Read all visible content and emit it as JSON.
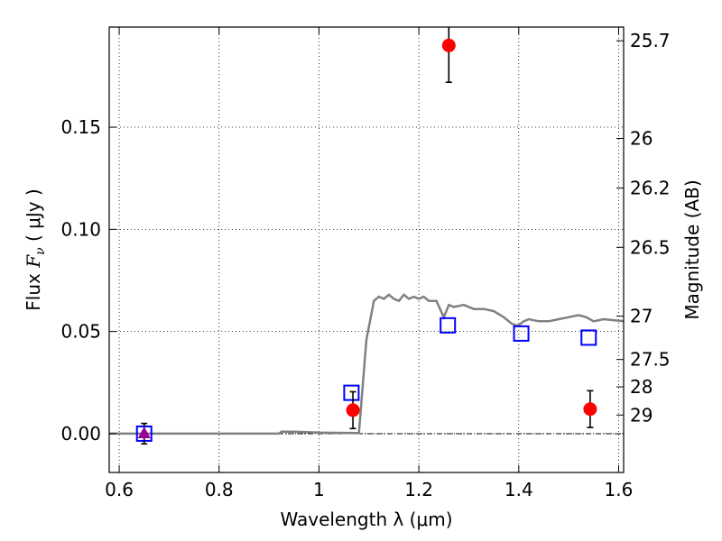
{
  "chart_data": {
    "type": "scatter",
    "xlabel": "Wavelength  λ (μm)",
    "ylabel": "Flux  F_ν  ( μJy )",
    "ylabel_parts": {
      "pre": "Flux  ",
      "sym": "F",
      "sub": "ν",
      "post": "  ( μJy )"
    },
    "y2label": "Magnitude (AB)",
    "xlim": [
      0.58,
      1.61
    ],
    "ylim": [
      -0.019,
      0.199
    ],
    "grid": true,
    "x_ticks": [
      {
        "value": 0.6,
        "label": "0.6"
      },
      {
        "value": 0.8,
        "label": "0.8"
      },
      {
        "value": 1.0,
        "label": "1"
      },
      {
        "value": 1.2,
        "label": "1.2"
      },
      {
        "value": 1.4,
        "label": "1.4"
      },
      {
        "value": 1.6,
        "label": "1.6"
      }
    ],
    "y_ticks": [
      {
        "value": 0.0,
        "label": "0.00"
      },
      {
        "value": 0.05,
        "label": "0.05"
      },
      {
        "value": 0.1,
        "label": "0.10"
      },
      {
        "value": 0.15,
        "label": "0.15"
      }
    ],
    "y2_ticks": [
      {
        "flux": 0.1923,
        "label": "25.7"
      },
      {
        "flux": 0.1445,
        "label": "26"
      },
      {
        "flux": 0.1202,
        "label": "26.2"
      },
      {
        "flux": 0.0912,
        "label": "26.5"
      },
      {
        "flux": 0.0575,
        "label": "27"
      },
      {
        "flux": 0.0363,
        "label": "27.5"
      },
      {
        "flux": 0.0229,
        "label": "28"
      },
      {
        "flux": 0.0091,
        "label": "29"
      }
    ],
    "zero_line": 0.0,
    "sed_model": {
      "color": "#808080",
      "x": [
        0.58,
        0.7,
        0.8,
        0.92,
        0.925,
        0.935,
        0.95,
        1.0,
        1.08,
        1.095,
        1.11,
        1.12,
        1.13,
        1.14,
        1.15,
        1.16,
        1.17,
        1.18,
        1.19,
        1.2,
        1.21,
        1.22,
        1.235,
        1.25,
        1.26,
        1.27,
        1.29,
        1.31,
        1.33,
        1.35,
        1.37,
        1.385,
        1.395,
        1.4,
        1.41,
        1.42,
        1.44,
        1.46,
        1.48,
        1.5,
        1.52,
        1.535,
        1.55,
        1.57,
        1.61
      ],
      "y": [
        0.0,
        0.0,
        0.0,
        0.0,
        0.001,
        0.001,
        0.001,
        0.0005,
        0.0003,
        0.046,
        0.065,
        0.067,
        0.066,
        0.068,
        0.066,
        0.065,
        0.068,
        0.066,
        0.067,
        0.066,
        0.067,
        0.065,
        0.065,
        0.057,
        0.063,
        0.062,
        0.063,
        0.061,
        0.061,
        0.06,
        0.057,
        0.054,
        0.053,
        0.053,
        0.055,
        0.056,
        0.055,
        0.055,
        0.056,
        0.057,
        0.058,
        0.057,
        0.055,
        0.056,
        0.055
      ]
    },
    "series": [
      {
        "marker": "circle",
        "color": "#ff0000",
        "points": [
          {
            "x": 1.068,
            "y": 0.0115,
            "err": 0.009
          },
          {
            "x": 1.26,
            "y": 0.19,
            "err": 0.018
          },
          {
            "x": 1.543,
            "y": 0.012,
            "err": 0.009
          }
        ]
      },
      {
        "marker": "square",
        "color": "#0000ff",
        "points": [
          {
            "x": 0.65,
            "y": 0.0
          },
          {
            "x": 1.065,
            "y": 0.02
          },
          {
            "x": 1.258,
            "y": 0.053
          },
          {
            "x": 1.405,
            "y": 0.049
          },
          {
            "x": 1.54,
            "y": 0.047
          }
        ]
      },
      {
        "marker": "triangle",
        "color": "#990099",
        "points": [
          {
            "x": 0.65,
            "y": 0.0,
            "err": 0.005
          }
        ]
      }
    ]
  }
}
